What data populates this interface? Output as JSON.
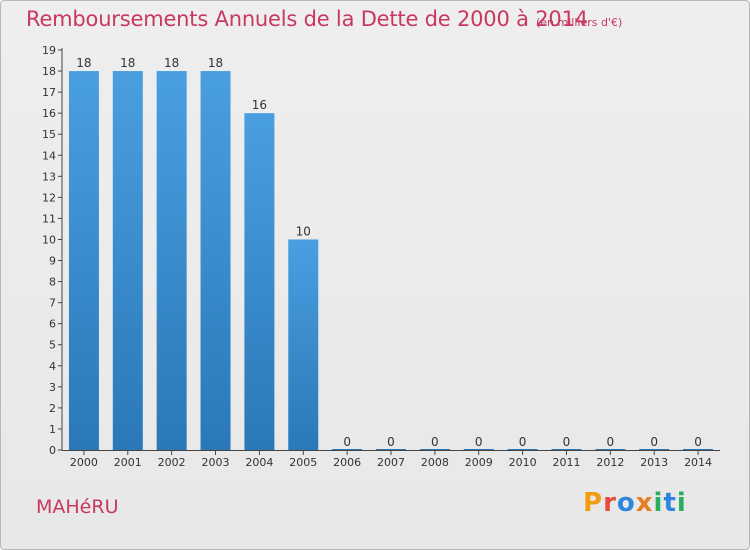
{
  "chart_data": {
    "type": "bar",
    "title": "Remboursements Annuels de la Dette de 2000 à 2014",
    "subtitle": "(en milliers d'€)",
    "categories": [
      "2000",
      "2001",
      "2002",
      "2003",
      "2004",
      "2005",
      "2006",
      "2007",
      "2008",
      "2009",
      "2010",
      "2011",
      "2012",
      "2013",
      "2014"
    ],
    "values": [
      18,
      18,
      18,
      18,
      16,
      10,
      0,
      0,
      0,
      0,
      0,
      0,
      0,
      0,
      0
    ],
    "ylim": [
      0,
      19
    ],
    "yticks": [
      0,
      1,
      2,
      3,
      4,
      5,
      6,
      7,
      8,
      9,
      10,
      11,
      12,
      13,
      14,
      15,
      16,
      17,
      18,
      19
    ],
    "xlabel": "",
    "ylabel": "",
    "bar_color": "#4a9fe0",
    "bar_color_dark": "#2a78b8"
  },
  "footer": {
    "commune": "MAHéRU",
    "logo": "Proxiti"
  },
  "colors": {
    "title": "#c8385f",
    "logo_letters": [
      "#f39c12",
      "#e74c3c",
      "#2e86de",
      "#e67e22",
      "#27ae60",
      "#2e86de",
      "#27ae60"
    ]
  }
}
